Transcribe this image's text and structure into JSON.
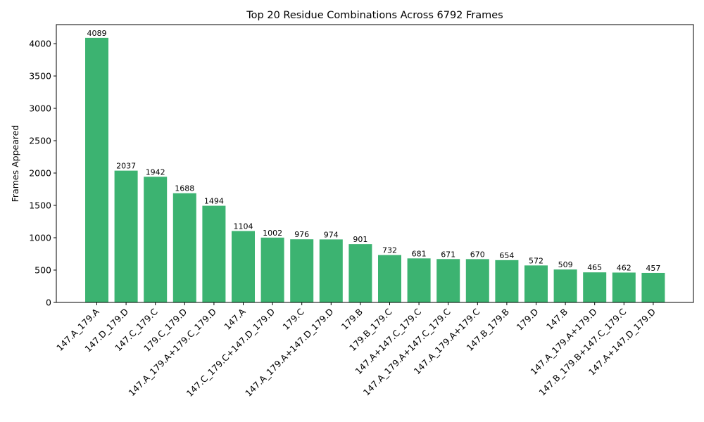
{
  "chart_data": {
    "type": "bar",
    "title": "Top 20 Residue Combinations Across 6792 Frames",
    "xlabel": "",
    "ylabel": "Frames Appeared",
    "ylim": [
      0,
      4294
    ],
    "yticks": [
      0,
      500,
      1000,
      1500,
      2000,
      2500,
      3000,
      3500,
      4000
    ],
    "grid": false,
    "bar_color": "#3cb371",
    "categories": [
      "147.A_179.A",
      "147.D_179.D",
      "147.C_179.C",
      "179.C_179.D",
      "147.A_179.A+179.C_179.D",
      "147.A",
      "147.C_179.C+147.D_179.D",
      "179.C",
      "147.A_179.A+147.D_179.D",
      "179.B",
      "179.B_179.C",
      "147.A+147.C_179.C",
      "147.A_179.A+147.C_179.C",
      "147.A_179.A+179.C",
      "147.B_179.B",
      "179.D",
      "147.B",
      "147.A_179.A+179.D",
      "147.B_179.B+147.C_179.C",
      "147.A+147.D_179.D"
    ],
    "values": [
      4089,
      2037,
      1942,
      1688,
      1494,
      1104,
      1002,
      976,
      974,
      901,
      732,
      681,
      671,
      670,
      654,
      572,
      509,
      465,
      462,
      457
    ]
  }
}
